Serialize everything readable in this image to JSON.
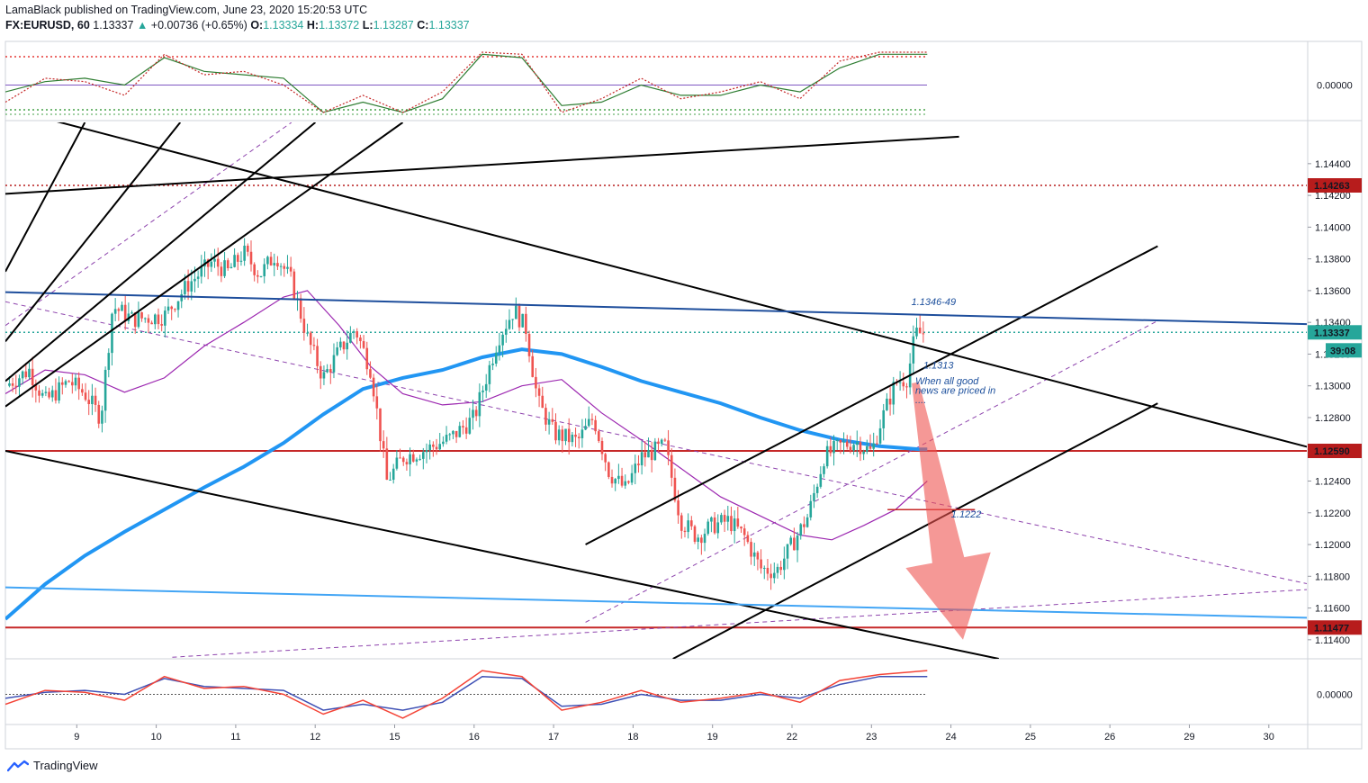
{
  "header": {
    "published": "LamaBlack published on TradingView.com, June 23, 2020 15:20:53 UTC",
    "symbol": "FX:EURUSD, 60",
    "last": "1.13337",
    "change": "+0.00736 (+0.65%)",
    "open_label": "O:",
    "open": "1.13334",
    "high_label": "H:",
    "high": "1.13372",
    "low_label": "L:",
    "low": "1.13287",
    "close_label": "C:",
    "close": "1.13337"
  },
  "footer": {
    "brand": "TradingView",
    "logo_icon": "tradingview-logo-icon"
  },
  "chart_data": {
    "type": "candlestick",
    "timeframe": "60",
    "y_ticks": [
      1.114,
      1.116,
      1.118,
      1.12,
      1.122,
      1.124,
      1.126,
      1.128,
      1.13,
      1.132,
      1.134,
      1.136,
      1.138,
      1.14,
      1.142,
      1.144
    ],
    "y_tick_labels": [
      "1.11400",
      "1.11600",
      "1.11800",
      "1.12000",
      "1.12200",
      "1.12400",
      "1.12600",
      "1.12800",
      "1.13000",
      "1.13200",
      "1.13400",
      "1.13600",
      "1.13800",
      "1.14000",
      "1.14200",
      "1.14400"
    ],
    "ylim": [
      1.1128,
      1.1466
    ],
    "x_labels": [
      "9",
      "10",
      "11",
      "12",
      "15",
      "16",
      "17",
      "18",
      "19",
      "22",
      "23",
      "24",
      "25",
      "26",
      "29",
      "30"
    ],
    "x_label_days": [
      1,
      2,
      3,
      4,
      5,
      6,
      7,
      8,
      9,
      10,
      11,
      12,
      13,
      14,
      15,
      16
    ],
    "price_labels": [
      {
        "value": 1.14263,
        "text": "1.14263",
        "color": "#b71c1c"
      },
      {
        "value": 1.13337,
        "text": "1.13337",
        "color": "#26a69a"
      },
      {
        "value": 1.1259,
        "text": "1.12590",
        "color": "#b71c1c"
      },
      {
        "value": 1.11477,
        "text": "1.11477",
        "color": "#b71c1c"
      }
    ],
    "countdown": "39:08",
    "oscillator_top_zero": "0.00000",
    "oscillator_bottom_zero": "0.00000",
    "annotations": [
      {
        "text": "1.1346-49",
        "x": 11.4,
        "y": 1.1351
      },
      {
        "text": "1.1313",
        "x": 11.55,
        "y": 1.1311
      },
      {
        "text": "When all good",
        "x": 11.45,
        "y": 1.1301
      },
      {
        "text": "news are priced in",
        "x": 11.45,
        "y": 1.1295
      },
      {
        "text": "....",
        "x": 11.45,
        "y": 1.1289
      },
      {
        "text": "1.1222",
        "x": 11.9,
        "y": 1.1217
      }
    ],
    "horizontal_levels": [
      {
        "value": 1.14263,
        "style": "dotted",
        "color": "#b71c1c"
      },
      {
        "value": 1.1259,
        "style": "solid",
        "color": "#c62828"
      },
      {
        "value": 1.11477,
        "style": "solid",
        "color": "#c62828"
      },
      {
        "value": 1.13337,
        "style": "dotted",
        "color": "#26a69a"
      }
    ],
    "segment_1222": {
      "x1": 11.1,
      "x2": 12.2,
      "y": 1.1222
    },
    "trend_lines": [
      {
        "color": "#000000",
        "w": 2,
        "x1": 0,
        "y1": 1.1475,
        "x2": 16.5,
        "y2": 1.126
      },
      {
        "color": "#000000",
        "w": 2,
        "x1": 0,
        "y1": 1.1259,
        "x2": 12.5,
        "y2": 1.1128
      },
      {
        "color": "#000000",
        "w": 2,
        "x1": 7.3,
        "y1": 1.12,
        "x2": 14.5,
        "y2": 1.1388
      },
      {
        "color": "#000000",
        "w": 2,
        "x1": 8.4,
        "y1": 1.1128,
        "x2": 14.5,
        "y2": 1.1289
      },
      {
        "color": "#000000",
        "w": 2,
        "x1": 0,
        "y1": 1.1421,
        "x2": 12.0,
        "y2": 1.1457
      },
      {
        "color": "#1e4e9c",
        "w": 2,
        "x1": 0,
        "y1": 1.1359,
        "x2": 17.1,
        "y2": 1.1338
      },
      {
        "color": "#42a5f5",
        "w": 2,
        "x1": 0,
        "y1": 1.1173,
        "x2": 17.1,
        "y2": 1.1153
      },
      {
        "color": "#000000",
        "w": 2,
        "x1": 0,
        "y1": 1.1372,
        "x2": 1.0,
        "y2": 1.1466
      },
      {
        "color": "#000000",
        "w": 2,
        "x1": 0,
        "y1": 1.1328,
        "x2": 2.2,
        "y2": 1.1466
      },
      {
        "color": "#000000",
        "w": 2,
        "x1": 0,
        "y1": 1.1303,
        "x2": 3.9,
        "y2": 1.1466
      },
      {
        "color": "#000000",
        "w": 2,
        "x1": 0,
        "y1": 1.1287,
        "x2": 5.0,
        "y2": 1.1466
      }
    ],
    "dashed_lines": [
      {
        "color": "#8e44ad",
        "x1": 0,
        "y1": 1.1353,
        "x2": 16.5,
        "y2": 1.1174
      },
      {
        "color": "#8e44ad",
        "x1": 0,
        "y1": 1.1338,
        "x2": 3.6,
        "y2": 1.1466
      },
      {
        "color": "#8e44ad",
        "x1": 7.3,
        "y1": 1.1151,
        "x2": 14.5,
        "y2": 1.1341
      },
      {
        "color": "#8e44ad",
        "x1": 2.1,
        "y1": 1.1129,
        "x2": 16.5,
        "y2": 1.1172
      }
    ],
    "ema_200": [
      [
        0,
        1.1153
      ],
      [
        0.5,
        1.1175
      ],
      [
        1,
        1.1193
      ],
      [
        1.5,
        1.1208
      ],
      [
        2,
        1.1222
      ],
      [
        2.5,
        1.1236
      ],
      [
        3,
        1.1249
      ],
      [
        3.5,
        1.1264
      ],
      [
        4,
        1.1282
      ],
      [
        4.5,
        1.1298
      ],
      [
        5,
        1.1305
      ],
      [
        5.5,
        1.131
      ],
      [
        6,
        1.1318
      ],
      [
        6.5,
        1.1323
      ],
      [
        7,
        1.132
      ],
      [
        7.5,
        1.1312
      ],
      [
        8,
        1.1303
      ],
      [
        8.5,
        1.1296
      ],
      [
        9,
        1.1289
      ],
      [
        9.5,
        1.128
      ],
      [
        10,
        1.1272
      ],
      [
        10.5,
        1.1266
      ],
      [
        11,
        1.1262
      ],
      [
        11.5,
        1.126
      ],
      [
        11.6,
        1.126
      ]
    ],
    "ma_50": [
      [
        0,
        1.1295
      ],
      [
        0.5,
        1.131
      ],
      [
        1,
        1.1307
      ],
      [
        1.5,
        1.1296
      ],
      [
        2,
        1.1305
      ],
      [
        2.5,
        1.1325
      ],
      [
        3,
        1.134
      ],
      [
        3.5,
        1.1356
      ],
      [
        3.8,
        1.136
      ],
      [
        4.2,
        1.1338
      ],
      [
        4.6,
        1.1312
      ],
      [
        5,
        1.1295
      ],
      [
        5.5,
        1.1288
      ],
      [
        6,
        1.129
      ],
      [
        6.5,
        1.13
      ],
      [
        7,
        1.1304
      ],
      [
        7.5,
        1.1283
      ],
      [
        8,
        1.1266
      ],
      [
        8.5,
        1.1248
      ],
      [
        9,
        1.123
      ],
      [
        9.5,
        1.1218
      ],
      [
        10,
        1.1206
      ],
      [
        10.4,
        1.1203
      ],
      [
        10.8,
        1.1212
      ],
      [
        11.2,
        1.1222
      ],
      [
        11.6,
        1.124
      ]
    ],
    "price_path": [
      [
        0,
        1.13
      ],
      [
        0.3,
        1.131
      ],
      [
        0.5,
        1.129
      ],
      [
        0.8,
        1.1303
      ],
      [
        1,
        1.1295
      ],
      [
        1.2,
        1.128
      ],
      [
        1.35,
        1.135
      ],
      [
        1.6,
        1.1342
      ],
      [
        2,
        1.1344
      ],
      [
        2.3,
        1.1364
      ],
      [
        2.6,
        1.1378
      ],
      [
        2.8,
        1.1372
      ],
      [
        3,
        1.1384
      ],
      [
        3.2,
        1.137
      ],
      [
        3.4,
        1.1383
      ],
      [
        3.6,
        1.1366
      ],
      [
        3.8,
        1.133
      ],
      [
        4,
        1.1305
      ],
      [
        4.2,
        1.1322
      ],
      [
        4.4,
        1.1336
      ],
      [
        4.6,
        1.131
      ],
      [
        4.8,
        1.124
      ],
      [
        5,
        1.1255
      ],
      [
        5.3,
        1.126
      ],
      [
        5.6,
        1.1267
      ],
      [
        5.9,
        1.128
      ],
      [
        6.2,
        1.133
      ],
      [
        6.4,
        1.1348
      ],
      [
        6.55,
        1.1336
      ],
      [
        6.7,
        1.129
      ],
      [
        6.9,
        1.127
      ],
      [
        7.2,
        1.1265
      ],
      [
        7.4,
        1.128
      ],
      [
        7.6,
        1.1245
      ],
      [
        7.8,
        1.1235
      ],
      [
        8.0,
        1.1255
      ],
      [
        8.3,
        1.1262
      ],
      [
        8.5,
        1.1215
      ],
      [
        8.7,
        1.1205
      ],
      [
        8.9,
        1.1212
      ],
      [
        9.1,
        1.1215
      ],
      [
        9.3,
        1.1205
      ],
      [
        9.5,
        1.1185
      ],
      [
        9.7,
        1.1183
      ],
      [
        9.9,
        1.12
      ],
      [
        10.1,
        1.1218
      ],
      [
        10.3,
        1.1255
      ],
      [
        10.5,
        1.1262
      ],
      [
        10.7,
        1.1265
      ],
      [
        10.9,
        1.1258
      ],
      [
        11.0,
        1.1275
      ],
      [
        11.2,
        1.1302
      ],
      [
        11.35,
        1.1305
      ],
      [
        11.45,
        1.1333
      ],
      [
        11.55,
        1.1333
      ]
    ],
    "arrow": {
      "color": "#ef5350",
      "opacity": 0.6,
      "from": [
        11.45,
        1.1302
      ],
      "to": [
        12.05,
        1.114
      ]
    },
    "top_oscillator": {
      "zero_label": "0.00000",
      "series": [
        {
          "name": "",
          "color": "#2e7d32"
        },
        {
          "name": "",
          "color": "#c62828"
        }
      ],
      "lines_dotted": [
        "red-top",
        "red-bottom",
        "green-bottom"
      ]
    },
    "bottom_oscillator": {
      "zero_label": "0.00000",
      "blue": [
        [
          0,
          -0.2
        ],
        [
          0.5,
          0.1
        ],
        [
          1,
          0.2
        ],
        [
          1.5,
          0.0
        ],
        [
          2,
          0.8
        ],
        [
          2.5,
          0.4
        ],
        [
          3,
          0.3
        ],
        [
          3.5,
          0.2
        ],
        [
          4,
          -0.8
        ],
        [
          4.5,
          -0.5
        ],
        [
          5,
          -0.8
        ],
        [
          5.5,
          -0.4
        ],
        [
          6,
          0.9
        ],
        [
          6.5,
          0.8
        ],
        [
          7,
          -0.6
        ],
        [
          7.5,
          -0.5
        ],
        [
          8,
          0.0
        ],
        [
          8.5,
          -0.3
        ],
        [
          9,
          -0.3
        ],
        [
          9.5,
          0.0
        ],
        [
          10,
          -0.2
        ],
        [
          10.5,
          0.5
        ],
        [
          11,
          0.9
        ],
        [
          11.6,
          0.9
        ]
      ],
      "red": [
        [
          0,
          -0.5
        ],
        [
          0.5,
          0.2
        ],
        [
          1,
          0.1
        ],
        [
          1.5,
          -0.3
        ],
        [
          2,
          0.9
        ],
        [
          2.5,
          0.3
        ],
        [
          3,
          0.4
        ],
        [
          3.5,
          0.0
        ],
        [
          4,
          -1.0
        ],
        [
          4.5,
          -0.3
        ],
        [
          5,
          -1.2
        ],
        [
          5.5,
          -0.2
        ],
        [
          6,
          1.2
        ],
        [
          6.5,
          0.9
        ],
        [
          7,
          -0.8
        ],
        [
          7.5,
          -0.4
        ],
        [
          8,
          0.2
        ],
        [
          8.5,
          -0.4
        ],
        [
          9,
          -0.2
        ],
        [
          9.5,
          0.1
        ],
        [
          10,
          -0.4
        ],
        [
          10.5,
          0.7
        ],
        [
          11,
          1.0
        ],
        [
          11.6,
          1.2
        ]
      ]
    }
  }
}
